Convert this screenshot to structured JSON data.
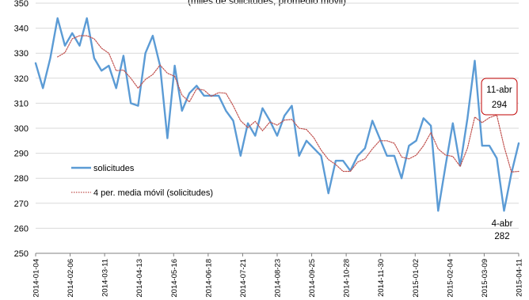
{
  "chart_data": {
    "type": "line",
    "title": "(miles de solicitudes, promedio móvil)",
    "xlabel": "",
    "ylabel": "",
    "ylim": [
      250,
      350
    ],
    "yticks": [
      250,
      260,
      270,
      280,
      290,
      300,
      310,
      320,
      330,
      340,
      350
    ],
    "x_tick_labels": [
      "2014-01-04",
      "2014-02-06",
      "2014-03-11",
      "2014-04-13",
      "2014-05-16",
      "2014-06-18",
      "2014-07-21",
      "2014-08-23",
      "2014-09-25",
      "2014-10-28",
      "2014-11-30",
      "2015-01-02",
      "2015-02-04",
      "2015-03-09",
      "2015-04-11"
    ],
    "x_start": "2014-01-04",
    "x_end": "2015-04-11",
    "grid": true,
    "legend_position": "center-left",
    "series": [
      {
        "name": "solicitudes",
        "style": "solid",
        "color": "#5b9bd5",
        "values": [
          326,
          316,
          328,
          344,
          333,
          338,
          333,
          344,
          328,
          323,
          325,
          316,
          329,
          310,
          309,
          330,
          337,
          325,
          296,
          325,
          307,
          314,
          317,
          313,
          313,
          313,
          307,
          303,
          289,
          302,
          297,
          308,
          303,
          297,
          305,
          309,
          289,
          295,
          292,
          289,
          274,
          287,
          287,
          283,
          289,
          292,
          303,
          296,
          289,
          289,
          280,
          293,
          295,
          304,
          301,
          267,
          285,
          302,
          285,
          304,
          327,
          293,
          293,
          288,
          267,
          282,
          294
        ]
      },
      {
        "name": "4 per. media móvil (solicitudes)",
        "style": "dotted",
        "color": "#c0504d",
        "values": [
          null,
          null,
          null,
          328.5,
          330.25,
          335.75,
          337,
          337,
          335.75,
          332,
          330,
          323,
          323.25,
          320,
          316,
          319.5,
          321.5,
          325.25,
          322,
          320.75,
          313.25,
          310.5,
          315.75,
          315.25,
          312.75,
          314.25,
          314,
          309,
          303,
          300.25,
          302.75,
          299,
          302.5,
          301.25,
          303.25,
          303.5,
          300,
          299.5,
          296.25,
          291.25,
          287.5,
          285.5,
          282.75,
          282.75,
          286.5,
          287.75,
          291.75,
          295,
          295,
          294,
          288.5,
          287.75,
          289.25,
          293,
          298.25,
          291.75,
          289.25,
          288.75,
          284.75,
          292,
          304.5,
          302.25,
          304.25,
          305.25,
          292.75,
          282.5,
          282.75
        ]
      }
    ],
    "annotations": [
      {
        "text": [
          "11-abr",
          "294"
        ],
        "boxed": true,
        "box_color": "#c00000"
      },
      {
        "text": [
          "4-abr",
          "282"
        ],
        "boxed": false
      }
    ]
  }
}
